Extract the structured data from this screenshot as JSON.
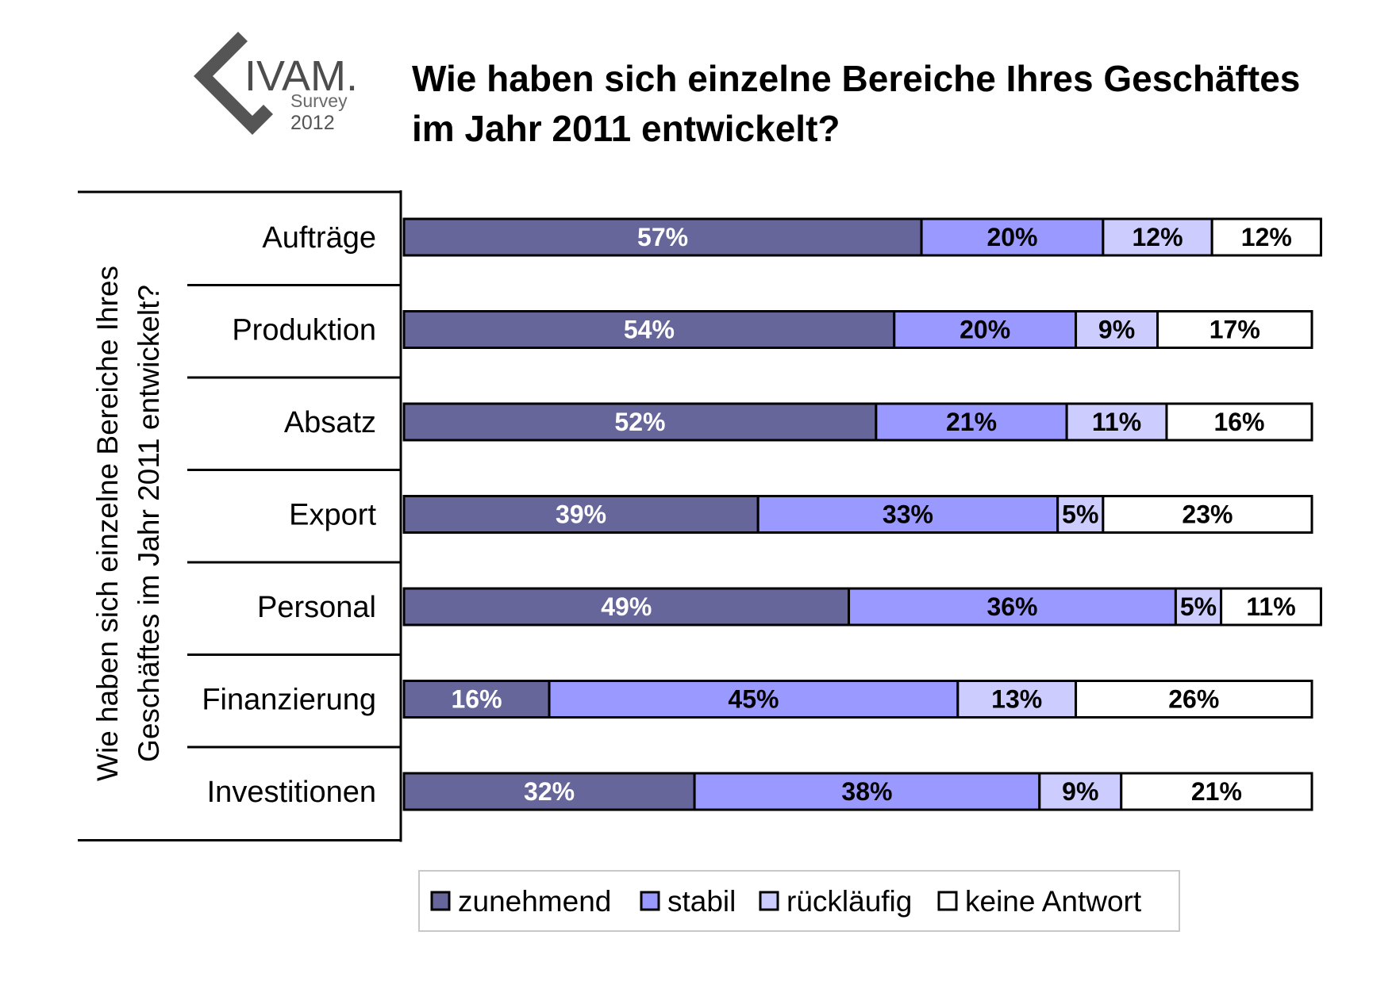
{
  "logo": {
    "name": "IVAM.",
    "sub": "Survey",
    "year": "2012"
  },
  "chart_data": {
    "type": "bar",
    "orientation": "horizontal",
    "stacked": true,
    "title_line1": "Wie haben sich einzelne Bereiche Ihres Geschäftes",
    "title_line2": "im Jahr 2011 entwickelt?",
    "ylabel_line1": "Wie haben sich einzelne Bereiche Ihres",
    "ylabel_line2": "Geschäftes im Jahr 2011 entwickelt?",
    "xlim": [
      0,
      100
    ],
    "grid": false,
    "legend_position": "bottom",
    "categories": [
      "Aufträge",
      "Produktion",
      "Absatz",
      "Export",
      "Personal",
      "Finanzierung",
      "Investitionen"
    ],
    "series": [
      {
        "name": "zunehmend",
        "color": "#66669a",
        "label_color": "#ffffff",
        "values": [
          57,
          54,
          52,
          39,
          49,
          16,
          32
        ]
      },
      {
        "name": "stabil",
        "color": "#9999ff",
        "label_color": "#000000",
        "values": [
          20,
          20,
          21,
          33,
          36,
          45,
          38
        ]
      },
      {
        "name": "rückläufig",
        "color": "#ccccff",
        "label_color": "#000000",
        "values": [
          12,
          9,
          11,
          5,
          5,
          13,
          9
        ]
      },
      {
        "name": "keine Antwort",
        "color": "#ffffff",
        "label_color": "#000000",
        "values": [
          12,
          17,
          16,
          23,
          11,
          26,
          21
        ]
      }
    ]
  }
}
